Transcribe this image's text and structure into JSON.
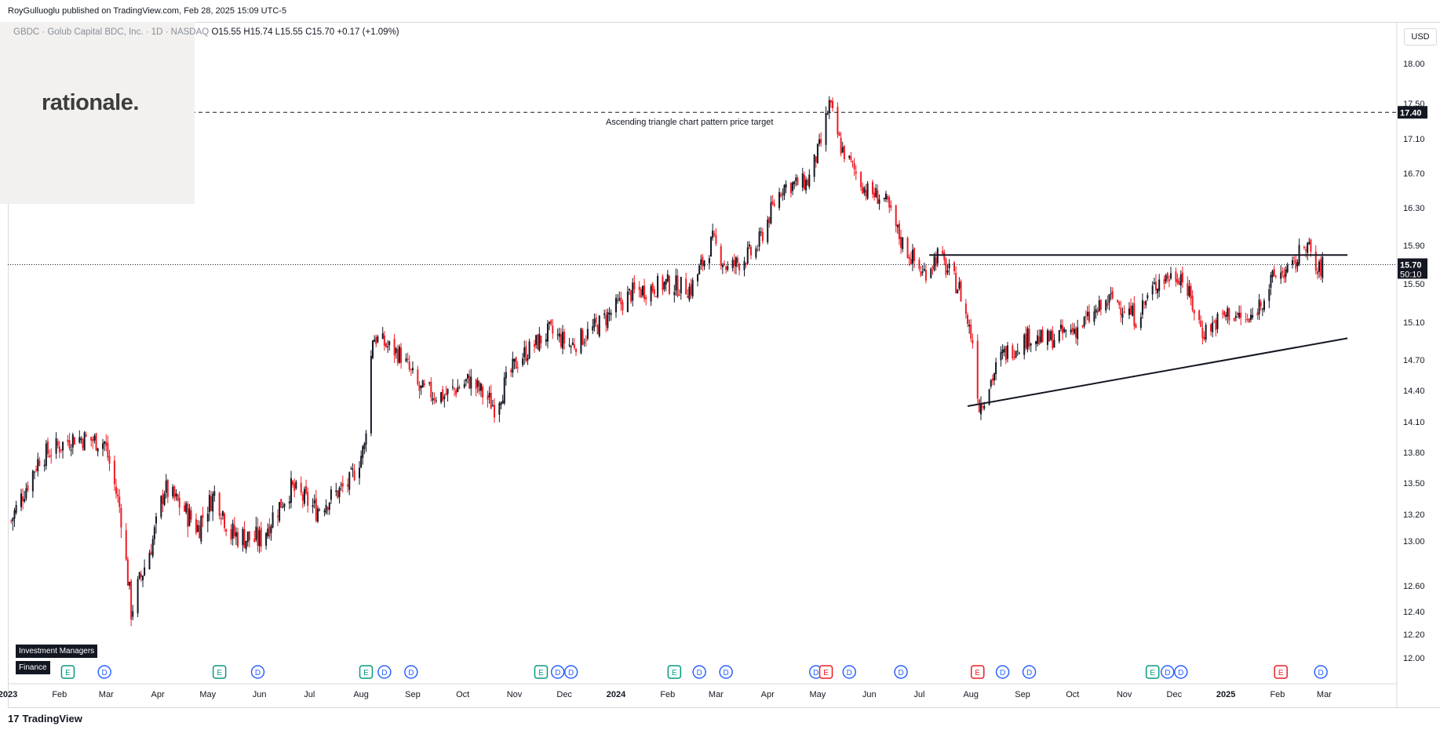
{
  "header": {
    "published_by": "RoyGulluoglu published on TradingView.com, Feb 28, 2025 15:09 UTC-5"
  },
  "symbol": {
    "name": "GBDC · Golub Capital BDC, Inc. · 1D · NASDAQ",
    "open_label": "O",
    "open": "15.55",
    "high_label": "H",
    "high": "15.74",
    "low_label": "L",
    "low": "15.55",
    "close_label": "C",
    "close": "15.70",
    "change": "+0.17 (+1.09%)"
  },
  "branding": {
    "overlay_logo": "rationale.",
    "footer": "TradingView",
    "footer_mark": "17"
  },
  "sector_badges": [
    "Investment Managers",
    "Finance"
  ],
  "colors": {
    "up": "#131722",
    "down": "#ef1b24",
    "line": "#131722",
    "last_price_bg": "#131722"
  },
  "chart_data": {
    "type": "candlestick",
    "currency": "USD",
    "annotation": "Ascending triangle chart pattern price target",
    "target_price_label": "17.40",
    "target_price": 17.4,
    "last_price_label": "15.70",
    "countdown_label": "50:10",
    "last_price": 15.7,
    "ylim": [
      11.9,
      18.2
    ],
    "y_ticks": [
      "18.00",
      "17.50",
      "17.10",
      "16.70",
      "16.30",
      "15.90",
      "15.50",
      "15.10",
      "14.70",
      "14.40",
      "14.10",
      "13.80",
      "13.50",
      "13.20",
      "13.00",
      "12.60",
      "12.40",
      "12.20",
      "12.00"
    ],
    "x_ticks": [
      "2023",
      "Feb",
      "Mar",
      "Apr",
      "May",
      "Jun",
      "Jul",
      "Aug",
      "Sep",
      "Oct",
      "Nov",
      "Dec",
      "2024",
      "Feb",
      "Mar",
      "Apr",
      "May",
      "Jun",
      "Jul",
      "Aug",
      "Sep",
      "Oct",
      "Nov",
      "Dec",
      "2025",
      "Feb",
      "Mar"
    ],
    "anchors": [
      [
        "2023-01-03",
        13.15
      ],
      [
        "2023-01-20",
        13.75
      ],
      [
        "2023-02-10",
        13.95
      ],
      [
        "2023-02-28",
        13.9
      ],
      [
        "2023-03-10",
        13.2
      ],
      [
        "2023-03-16",
        12.4
      ],
      [
        "2023-03-31",
        13.1
      ],
      [
        "2023-04-05",
        13.45
      ],
      [
        "2023-04-25",
        13.1
      ],
      [
        "2023-05-05",
        13.4
      ],
      [
        "2023-05-15",
        13.05
      ],
      [
        "2023-06-01",
        13.0
      ],
      [
        "2023-06-20",
        13.45
      ],
      [
        "2023-07-05",
        13.25
      ],
      [
        "2023-07-25",
        13.5
      ],
      [
        "2023-08-03",
        13.85
      ],
      [
        "2023-08-08",
        14.95
      ],
      [
        "2023-08-25",
        14.75
      ],
      [
        "2023-09-05",
        14.4
      ],
      [
        "2023-09-20",
        14.35
      ],
      [
        "2023-10-05",
        14.5
      ],
      [
        "2023-10-20",
        14.25
      ],
      [
        "2023-11-03",
        14.7
      ],
      [
        "2023-11-22",
        15.0
      ],
      [
        "2023-12-05",
        14.85
      ],
      [
        "2023-12-20",
        15.05
      ],
      [
        "2024-01-10",
        15.4
      ],
      [
        "2024-01-31",
        15.5
      ],
      [
        "2024-02-15",
        15.45
      ],
      [
        "2024-02-28",
        15.95
      ],
      [
        "2024-03-08",
        15.65
      ],
      [
        "2024-03-25",
        15.85
      ],
      [
        "2024-04-05",
        16.35
      ],
      [
        "2024-04-10",
        16.55
      ],
      [
        "2024-04-25",
        16.6
      ],
      [
        "2024-05-03",
        17.05
      ],
      [
        "2024-05-08",
        17.5
      ],
      [
        "2024-05-15",
        17.0
      ],
      [
        "2024-05-30",
        16.5
      ],
      [
        "2024-06-10",
        16.4
      ],
      [
        "2024-06-20",
        15.95
      ],
      [
        "2024-07-03",
        15.6
      ],
      [
        "2024-07-12",
        15.8
      ],
      [
        "2024-07-25",
        15.45
      ],
      [
        "2024-08-02",
        14.9
      ],
      [
        "2024-08-06",
        14.25
      ],
      [
        "2024-08-20",
        14.75
      ],
      [
        "2024-09-05",
        14.95
      ],
      [
        "2024-09-15",
        14.9
      ],
      [
        "2024-10-05",
        15.05
      ],
      [
        "2024-10-25",
        15.35
      ],
      [
        "2024-11-08",
        15.15
      ],
      [
        "2024-11-22",
        15.55
      ],
      [
        "2024-12-05",
        15.6
      ],
      [
        "2024-12-18",
        15.0
      ],
      [
        "2025-01-03",
        15.2
      ],
      [
        "2025-01-15",
        15.1
      ],
      [
        "2025-01-31",
        15.6
      ],
      [
        "2025-02-10",
        15.65
      ],
      [
        "2025-02-18",
        15.95
      ],
      [
        "2025-02-25",
        15.6
      ],
      [
        "2025-02-28",
        15.7
      ]
    ],
    "trendlines": [
      {
        "name": "resistance",
        "from": [
          "2024-07-07",
          15.8
        ],
        "to": [
          "2025-03-15",
          15.8
        ]
      },
      {
        "name": "support",
        "from": [
          "2024-07-30",
          14.25
        ],
        "to": [
          "2025-03-15",
          14.93
        ]
      },
      {
        "name": "target",
        "from": [
          "2022-12-20",
          17.4
        ],
        "to": [
          "2025-04-30",
          17.4
        ],
        "dashed": true
      }
    ],
    "events": [
      {
        "date": "2023-02-06",
        "type": "E"
      },
      {
        "date": "2023-02-28",
        "type": "D"
      },
      {
        "date": "2023-05-08",
        "type": "E"
      },
      {
        "date": "2023-05-31",
        "type": "D"
      },
      {
        "date": "2023-08-04",
        "type": "E"
      },
      {
        "date": "2023-08-15",
        "type": "D"
      },
      {
        "date": "2023-08-31",
        "type": "D"
      },
      {
        "date": "2023-11-17",
        "type": "E"
      },
      {
        "date": "2023-11-27",
        "type": "D"
      },
      {
        "date": "2023-12-05",
        "type": "D"
      },
      {
        "date": "2024-02-05",
        "type": "E"
      },
      {
        "date": "2024-02-20",
        "type": "D"
      },
      {
        "date": "2024-03-07",
        "type": "D"
      },
      {
        "date": "2024-04-30",
        "type": "D"
      },
      {
        "date": "2024-05-06",
        "type": "E",
        "red": true
      },
      {
        "date": "2024-05-20",
        "type": "D"
      },
      {
        "date": "2024-06-20",
        "type": "D"
      },
      {
        "date": "2024-08-05",
        "type": "E",
        "red": true
      },
      {
        "date": "2024-08-20",
        "type": "D"
      },
      {
        "date": "2024-09-05",
        "type": "D"
      },
      {
        "date": "2024-11-18",
        "type": "E"
      },
      {
        "date": "2024-11-27",
        "type": "D"
      },
      {
        "date": "2024-12-05",
        "type": "D"
      },
      {
        "date": "2025-02-03",
        "type": "E",
        "red": true
      },
      {
        "date": "2025-02-27",
        "type": "D"
      }
    ]
  }
}
